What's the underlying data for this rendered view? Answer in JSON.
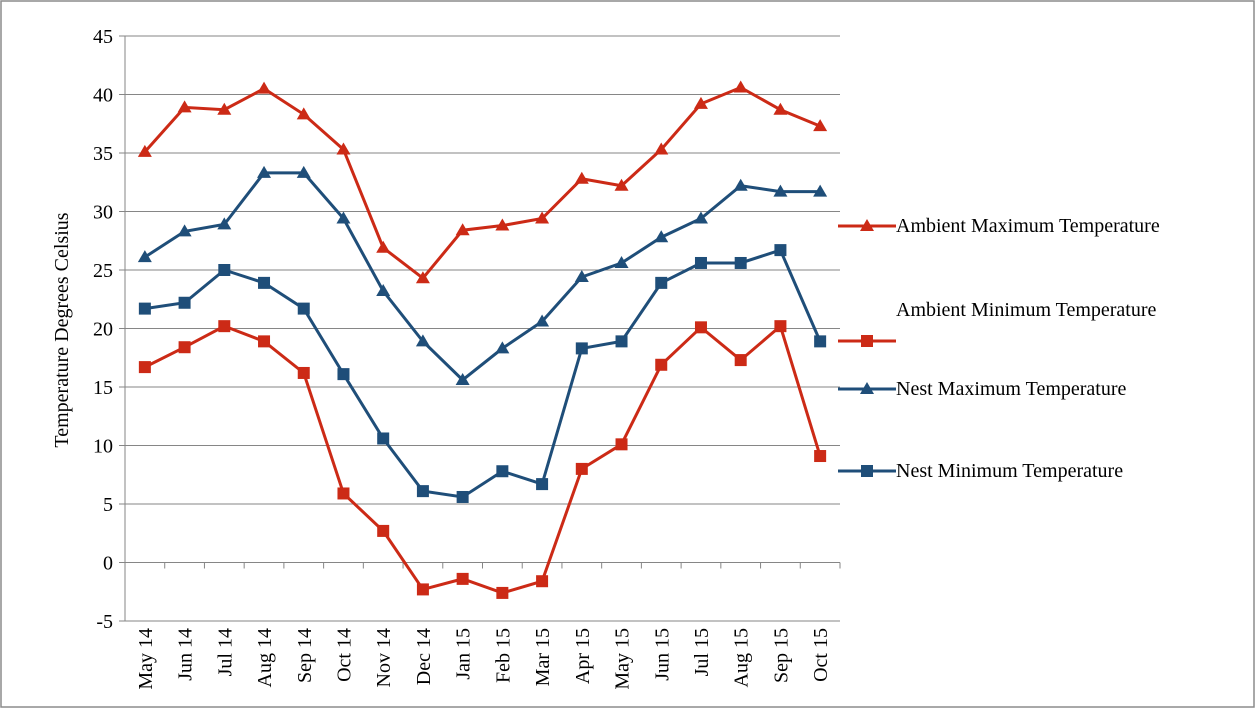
{
  "chart_data": {
    "type": "line",
    "y_label": "Temperature Degrees Celsius",
    "categories": [
      "May 14",
      "Jun 14",
      "Jul 14",
      "Aug 14",
      "Sep 14",
      "Oct 14",
      "Nov 14",
      "Dec 14",
      "Jan 15",
      "Feb 15",
      "Mar 15",
      "Apr 15",
      "May 15",
      "Jun 15",
      "Jul 15",
      "Aug 15",
      "Sep 15",
      "Oct 15"
    ],
    "series": [
      {
        "name": "Ambient Maximum Temperature",
        "color": "#cc2a16",
        "marker": "triangle",
        "values": [
          35.1,
          38.9,
          38.7,
          40.5,
          38.3,
          35.3,
          26.9,
          24.3,
          28.4,
          28.8,
          29.4,
          32.8,
          32.2,
          35.3,
          39.2,
          40.6,
          38.7,
          37.3
        ]
      },
      {
        "name": "Ambient Minimum Temperature",
        "color": "#cc2a16",
        "marker": "square",
        "values": [
          16.7,
          18.4,
          20.2,
          18.9,
          16.2,
          5.9,
          2.7,
          -2.3,
          -1.4,
          -2.6,
          -1.6,
          8.0,
          10.1,
          16.9,
          20.1,
          17.3,
          20.2,
          9.1
        ]
      },
      {
        "name": "Nest Maximum Temperature",
        "color": "#1f4e79",
        "marker": "triangle",
        "values": [
          26.1,
          28.3,
          28.9,
          33.3,
          33.3,
          29.4,
          23.2,
          18.9,
          15.6,
          18.3,
          20.6,
          24.4,
          25.6,
          27.8,
          29.4,
          32.2,
          31.7,
          31.7
        ]
      },
      {
        "name": "Nest Minimum Temperature",
        "color": "#1f4e79",
        "marker": "square",
        "values": [
          21.7,
          22.2,
          25.0,
          23.9,
          21.7,
          16.1,
          10.6,
          6.1,
          5.6,
          7.8,
          6.7,
          18.3,
          18.9,
          23.9,
          25.6,
          25.6,
          26.7,
          18.9
        ]
      }
    ],
    "ylim": [
      -5,
      45
    ],
    "yticks": [
      -5,
      0,
      5,
      10,
      15,
      20,
      25,
      30,
      35,
      40,
      45
    ],
    "grid": true,
    "legend": "right"
  }
}
